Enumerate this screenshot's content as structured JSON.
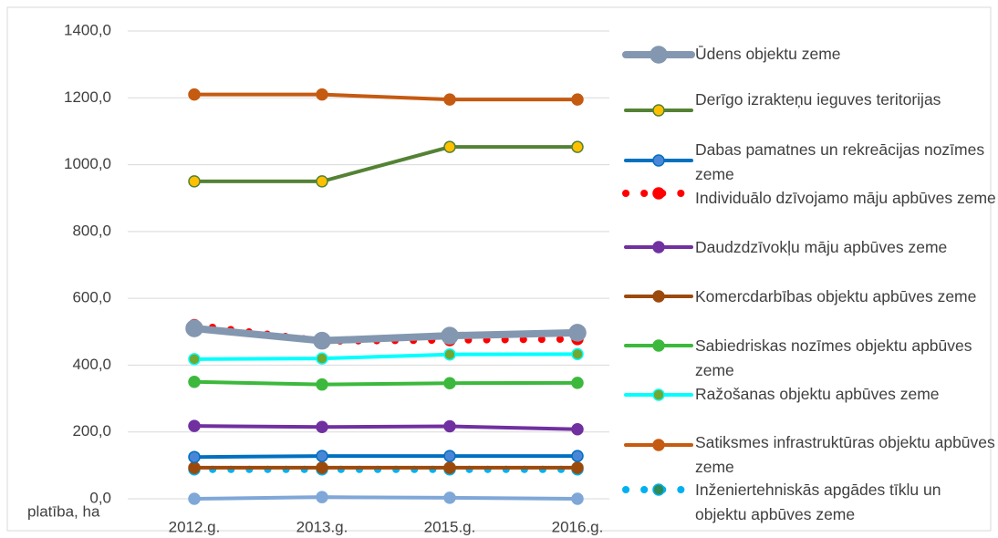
{
  "chart_data": {
    "type": "line",
    "y_label": "platība, ha",
    "categories": [
      "2012.g.",
      "2013.g.",
      "2015.g.",
      "2016.g."
    ],
    "ylim": [
      0,
      1400
    ],
    "yticks": [
      {
        "value": 0,
        "label": "0,0"
      },
      {
        "value": 200,
        "label": "200,0"
      },
      {
        "value": 400,
        "label": "400,0"
      },
      {
        "value": 600,
        "label": "600,0"
      },
      {
        "value": 800,
        "label": "800,0"
      },
      {
        "value": 1000,
        "label": "1000,0"
      },
      {
        "value": 1200,
        "label": "1200,0"
      },
      {
        "value": 1400,
        "label": "1400,0"
      }
    ],
    "grid": true,
    "legend": "right",
    "series": [
      {
        "name": "Ūdens objektu zeme",
        "color": "#8497b0",
        "marker_color": "#8497b0",
        "values": [
          510,
          473,
          488,
          497
        ]
      },
      {
        "name": "Derīgo izrakteņu ieguves teritorijas",
        "color": "#548235",
        "marker_color": "#ffc000",
        "values": [
          950,
          950,
          1053,
          1053
        ]
      },
      {
        "name": "Dabas pamatnes un rekreācijas nozīmes zeme",
        "color": "#0070c0",
        "marker_color": "#4a86d8",
        "values": [
          125,
          128,
          128,
          128
        ]
      },
      {
        "name": "Individuālo dzīvojamo māju apbūves zeme",
        "color": "#ff0000",
        "marker_color": "#ff0000",
        "line_style": "dotted",
        "values": [
          520,
          472,
          475,
          478
        ]
      },
      {
        "name": "Daudzdzīvokļu māju apbūves zeme",
        "color": "#7030a0",
        "marker_color": "#7030a0",
        "values": [
          218,
          215,
          217,
          208
        ]
      },
      {
        "name": "Komercdarbības objektu apbūves zeme",
        "color": "#9c4a0c",
        "marker_color": "#9c4a0c",
        "values": [
          93,
          93,
          93,
          93
        ]
      },
      {
        "name": "Sabiedriskas nozīmes objektu apbūves zeme",
        "color": "#3cb93c",
        "marker_color": "#3cb93c",
        "values": [
          350,
          342,
          346,
          347
        ]
      },
      {
        "name": "Ražošanas objektu apbūves zeme",
        "color": "#00ffff",
        "marker_color": "#70a830",
        "values": [
          418,
          420,
          432,
          433
        ]
      },
      {
        "name": "Satiksmes infrastruktūras objektu apbūves zeme",
        "color": "#c55a11",
        "marker_color": "#c55a11",
        "values": [
          1210,
          1210,
          1195,
          1195
        ]
      },
      {
        "name": "Inženiertehniskās apgādes tīklu un objektu apbūves zeme",
        "color": "#00b0f0",
        "marker_color": "#2e8b57",
        "line_style": "dotted",
        "values": [
          88,
          88,
          88,
          88
        ]
      },
      {
        "color": "#7fa7d8",
        "marker_color": "#7fa7d8",
        "values": [
          0,
          5,
          3,
          0
        ]
      }
    ]
  }
}
